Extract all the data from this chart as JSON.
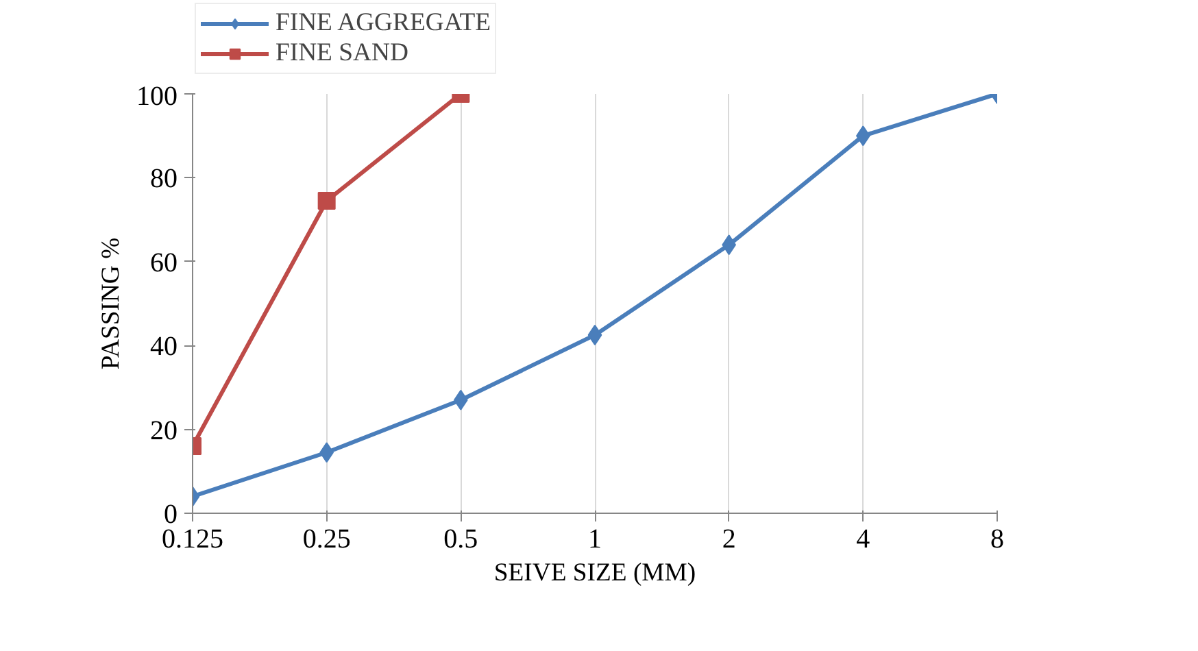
{
  "chart_data": {
    "type": "line",
    "xlabel": "SEIVE SIZE (MM)",
    "ylabel": "PASSING %",
    "categories": [
      "0.125",
      "0.25",
      "0.5",
      "1",
      "2",
      "4",
      "8"
    ],
    "series": [
      {
        "name": "FINE AGGREGATE",
        "color": "#4a7ebb",
        "marker": "diamond",
        "values": [
          4,
          14.5,
          27,
          42.5,
          64,
          90,
          100
        ]
      },
      {
        "name": "FINE SAND",
        "color": "#be4b48",
        "marker": "square",
        "values": [
          16,
          74.5,
          100,
          null,
          null,
          null,
          null
        ]
      }
    ],
    "ylim": [
      0,
      100
    ],
    "yticks": [
      0,
      20,
      40,
      60,
      80,
      100
    ],
    "grid": "x",
    "legend": "top left",
    "line_style": "solid"
  }
}
